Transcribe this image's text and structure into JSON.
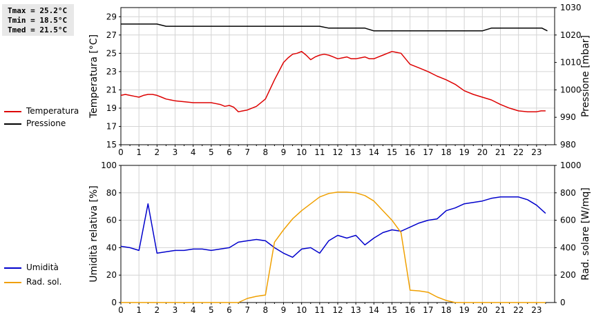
{
  "stats": {
    "tmax": "Tmax = 25.2°C",
    "tmin": "Tmin = 18.5°C",
    "tmed": "Tmed = 21.5°C"
  },
  "chart_data": [
    {
      "type": "line",
      "x_ticks": [
        "0",
        "1",
        "2",
        "3",
        "4",
        "5",
        "6",
        "7",
        "8",
        "9",
        "10",
        "11",
        "12",
        "13",
        "14",
        "15",
        "16",
        "17",
        "18",
        "19",
        "20",
        "21",
        "22",
        "23"
      ],
      "xlim": [
        0,
        24
      ],
      "ylabel": "Temperatura [°C]",
      "ylim": [
        15,
        30
      ],
      "yticks": [
        "15",
        "17",
        "19",
        "21",
        "23",
        "25",
        "27",
        "29"
      ],
      "ylabel_right": "Pressione [mbar]",
      "ylim_right": [
        980,
        1030
      ],
      "yticks_right": [
        "980",
        "990",
        "1000",
        "1010",
        "1020",
        "1030"
      ],
      "grid": true,
      "legend_position": "left",
      "series": [
        {
          "name": "Temperatura",
          "axis": "left",
          "color": "#dd0000",
          "x": [
            0,
            0.25,
            0.5,
            0.75,
            1,
            1.25,
            1.5,
            1.75,
            2,
            2.25,
            2.5,
            2.75,
            3,
            3.5,
            4,
            4.5,
            5,
            5.25,
            5.5,
            5.75,
            6,
            6.25,
            6.5,
            6.75,
            7,
            7.5,
            8,
            8.5,
            9,
            9.25,
            9.5,
            9.75,
            10,
            10.25,
            10.5,
            10.75,
            11,
            11.25,
            11.5,
            11.75,
            12,
            12.25,
            12.5,
            12.75,
            13,
            13.25,
            13.5,
            13.75,
            14,
            14.25,
            14.5,
            14.75,
            15,
            15.25,
            15.5,
            15.75,
            16,
            16.5,
            17,
            17.5,
            18,
            18.5,
            19,
            19.5,
            20,
            20.5,
            21,
            21.5,
            22,
            22.5,
            23,
            23.25,
            23.5
          ],
          "y": [
            20.4,
            20.5,
            20.4,
            20.3,
            20.2,
            20.4,
            20.5,
            20.5,
            20.4,
            20.2,
            20.0,
            19.9,
            19.8,
            19.7,
            19.6,
            19.6,
            19.6,
            19.5,
            19.4,
            19.2,
            19.3,
            19.1,
            18.6,
            18.7,
            18.8,
            19.2,
            20.0,
            22.1,
            24.0,
            24.5,
            24.9,
            25.0,
            25.2,
            24.8,
            24.3,
            24.6,
            24.8,
            24.9,
            24.8,
            24.6,
            24.4,
            24.5,
            24.6,
            24.4,
            24.4,
            24.5,
            24.6,
            24.4,
            24.4,
            24.6,
            24.8,
            25.0,
            25.2,
            25.1,
            25.0,
            24.4,
            23.8,
            23.4,
            23.0,
            22.5,
            22.1,
            21.6,
            20.9,
            20.5,
            20.2,
            19.9,
            19.4,
            19.0,
            18.7,
            18.6,
            18.6,
            18.7,
            18.7
          ]
        },
        {
          "name": "Pressione",
          "axis": "right",
          "color": "#000000",
          "x": [
            0,
            2,
            2.5,
            11,
            11.5,
            13.5,
            14,
            20,
            20.5,
            23.3,
            23.6
          ],
          "y": [
            1024,
            1024,
            1023.2,
            1023.2,
            1022.5,
            1022.5,
            1021.5,
            1021.5,
            1022.5,
            1022.5,
            1021.5
          ]
        }
      ]
    },
    {
      "type": "line",
      "x_ticks": [
        "0",
        "1",
        "2",
        "3",
        "4",
        "5",
        "6",
        "7",
        "8",
        "9",
        "10",
        "11",
        "12",
        "13",
        "14",
        "15",
        "16",
        "17",
        "18",
        "19",
        "20",
        "21",
        "22",
        "23"
      ],
      "xlim": [
        0,
        24
      ],
      "ylabel": "Umidità relativa [%]",
      "ylim": [
        0,
        100
      ],
      "yticks": [
        "0",
        "20",
        "40",
        "60",
        "80",
        "100"
      ],
      "ylabel_right": "Rad. solare [W/mq]",
      "ylim_right": [
        0,
        1000
      ],
      "yticks_right": [
        "0",
        "200",
        "400",
        "600",
        "800",
        "1000"
      ],
      "grid": true,
      "legend_position": "left",
      "series": [
        {
          "name": "Umidità",
          "axis": "left",
          "color": "#0000cc",
          "x": [
            0,
            0.5,
            1,
            1.5,
            2,
            2.5,
            3,
            3.5,
            4,
            4.5,
            5,
            5.5,
            6,
            6.5,
            7,
            7.5,
            8,
            8.5,
            9,
            9.5,
            10,
            10.5,
            11,
            11.5,
            12,
            12.5,
            13,
            13.5,
            14,
            14.5,
            15,
            15.5,
            16,
            16.5,
            17,
            17.5,
            18,
            18.5,
            19,
            19.5,
            20,
            20.5,
            21,
            21.5,
            22,
            22.5,
            23,
            23.5
          ],
          "y": [
            41,
            40,
            38,
            72,
            36,
            37,
            38,
            38,
            39,
            39,
            38,
            39,
            40,
            44,
            45,
            46,
            45,
            40,
            36,
            33,
            39,
            40,
            36,
            45,
            49,
            47,
            49,
            42,
            47,
            51,
            53,
            52,
            55,
            58,
            60,
            61,
            67,
            69,
            72,
            73,
            74,
            76,
            77,
            77,
            77,
            75,
            71,
            65
          ]
        },
        {
          "name": "Rad. sol.",
          "axis": "right",
          "color": "#f0a000",
          "x": [
            0,
            6.5,
            7,
            7.5,
            8,
            8.5,
            9,
            9.5,
            10,
            10.5,
            11,
            11.5,
            12,
            12.5,
            13,
            13.5,
            14,
            14.5,
            15,
            15.5,
            16,
            16.5,
            17,
            17.5,
            18,
            18.5,
            19,
            20,
            21,
            22,
            23,
            23.5
          ],
          "y": [
            0,
            0,
            30,
            45,
            55,
            440,
            530,
            610,
            670,
            720,
            770,
            795,
            805,
            805,
            800,
            780,
            740,
            670,
            600,
            510,
            90,
            85,
            75,
            40,
            15,
            0,
            0,
            0,
            0,
            0,
            0,
            0
          ]
        }
      ]
    }
  ]
}
